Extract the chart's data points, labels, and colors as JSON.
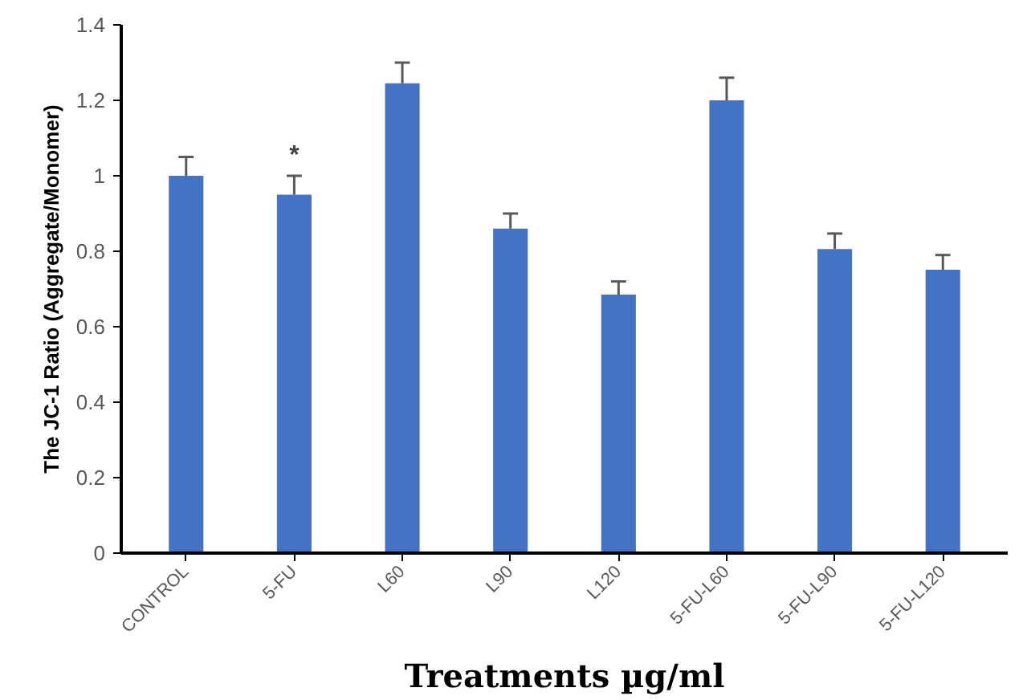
{
  "chart_data": {
    "type": "bar",
    "xlabel": "Treatments µg/ml",
    "ylabel": "The JC-1 Ratio (Aggregate/Monomer)",
    "categories": [
      "CONTROL",
      "5-FU",
      "L60",
      "L90",
      "L120",
      "5-FU-L60",
      "5-FU-L90",
      "5-FU-L120"
    ],
    "values": [
      1.0,
      0.95,
      1.245,
      0.86,
      0.685,
      1.2,
      0.806,
      0.751
    ],
    "errors": [
      [
        1.0,
        1.05
      ],
      [
        0.95,
        1.0
      ],
      [
        1.245,
        1.3
      ],
      [
        0.86,
        0.9
      ],
      [
        0.685,
        0.72
      ],
      [
        1.2,
        1.26
      ],
      [
        0.806,
        0.847
      ],
      [
        0.751,
        0.79
      ]
    ],
    "color": "#4472c4",
    "ylim": [
      0,
      1.4
    ],
    "yticks": [
      0,
      0.2,
      0.4,
      0.6,
      0.8,
      1,
      1.2,
      1.4
    ],
    "annotations": [
      {
        "text": "*",
        "x": "5-FU",
        "y": 1.0
      }
    ],
    "grid": false
  }
}
